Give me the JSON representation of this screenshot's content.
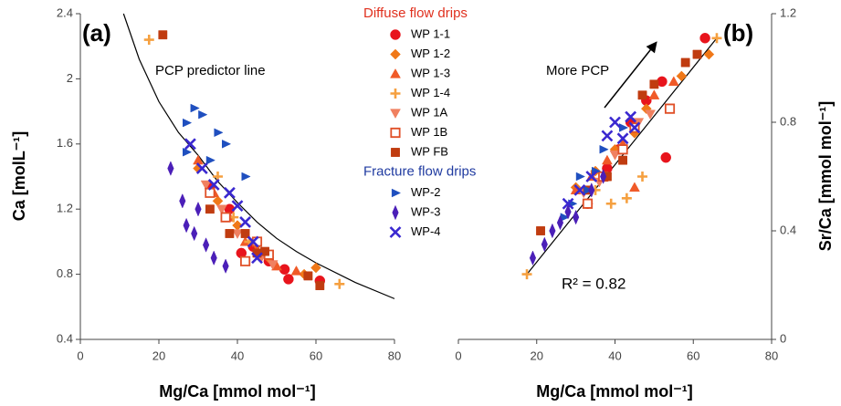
{
  "chart_data": [
    {
      "type": "scatter",
      "panel_label": "(a)",
      "x_label": "Mg/Ca [mmol mol⁻¹]",
      "y_label": "Ca [molL⁻¹]",
      "xlim": [
        0,
        80
      ],
      "xticks": [
        0,
        20,
        40,
        60,
        80
      ],
      "ylim": [
        0.4,
        2.4
      ],
      "yticks": [
        0.4,
        0.8,
        1.2,
        1.6,
        2,
        2.4
      ],
      "y_axis_side": "left",
      "annotation": "PCP predictor line",
      "lines": [
        {
          "color": "#000000",
          "x": [
            11,
            15,
            20,
            25,
            30,
            35,
            40,
            45,
            50,
            55,
            60,
            70,
            80
          ],
          "values": [
            2.4,
            2.12,
            1.86,
            1.67,
            1.53,
            1.37,
            1.24,
            1.12,
            1.02,
            0.94,
            0.87,
            0.75,
            0.65
          ]
        }
      ],
      "series_groups": [
        {
          "title": "Diffuse flow drips",
          "color": "#e0301e",
          "series": [
            {
              "name": "WP 1-1",
              "color": "#e8141c",
              "marker": "circle",
              "x": [
                33,
                38,
                41,
                44,
                48,
                52,
                53,
                61
              ],
              "values": [
                1.33,
                1.2,
                0.93,
                0.97,
                0.88,
                0.83,
                0.77,
                0.76
              ]
            },
            {
              "name": "WP 1-2",
              "color": "#f07818",
              "marker": "diamond",
              "x": [
                30,
                35,
                40,
                45,
                48,
                57,
                60
              ],
              "values": [
                1.45,
                1.25,
                1.1,
                0.98,
                0.9,
                0.8,
                0.84
              ]
            },
            {
              "name": "WP 1-3",
              "color": "#f05a28",
              "marker": "triangle",
              "x": [
                30,
                34,
                38,
                42,
                45,
                50,
                55
              ],
              "values": [
                1.5,
                1.3,
                1.15,
                1.0,
                0.95,
                0.85,
                0.82
              ]
            },
            {
              "name": "WP 1-4",
              "color": "#f5a040",
              "marker": "plus",
              "x": [
                17.5,
                35,
                39,
                43,
                47,
                66
              ],
              "values": [
                2.24,
                1.4,
                1.15,
                1.0,
                0.93,
                0.74
              ]
            },
            {
              "name": "WP 1A",
              "color": "#f08060",
              "marker": "triangle-down",
              "x": [
                32,
                36,
                40,
                46,
                49
              ],
              "values": [
                1.35,
                1.2,
                1.05,
                0.9,
                0.86
              ]
            },
            {
              "name": "WP 1B",
              "color": "#e05028",
              "marker": "square-open",
              "x": [
                33,
                37,
                42,
                45,
                48
              ],
              "values": [
                1.3,
                1.15,
                0.88,
                1.0,
                0.92
              ]
            },
            {
              "name": "WP FB",
              "color": "#c03c10",
              "marker": "square",
              "x": [
                21,
                33,
                38,
                42,
                45,
                47,
                58,
                61
              ],
              "values": [
                2.27,
                1.2,
                1.05,
                1.05,
                0.93,
                0.94,
                0.79,
                0.73
              ]
            }
          ]
        },
        {
          "title": "Fracture flow drips",
          "color": "#1f3aa0",
          "series": [
            {
              "name": "WP-2",
              "color": "#1f4fbf",
              "marker": "triangle-right",
              "x": [
                27,
                29,
                31,
                35,
                37,
                42,
                33,
                27
              ],
              "values": [
                1.73,
                1.82,
                1.78,
                1.67,
                1.6,
                1.4,
                1.5,
                1.55
              ]
            },
            {
              "name": "WP-3",
              "color": "#4b1fb8",
              "marker": "thin-diamond",
              "x": [
                23,
                26,
                27,
                29,
                30,
                32,
                34,
                37
              ],
              "values": [
                1.45,
                1.25,
                1.1,
                1.05,
                1.2,
                0.98,
                0.9,
                0.85
              ]
            },
            {
              "name": "WP-4",
              "color": "#3a28d0",
              "marker": "x",
              "x": [
                28,
                31,
                34,
                38,
                40,
                42,
                44,
                45
              ],
              "values": [
                1.6,
                1.45,
                1.35,
                1.3,
                1.22,
                1.12,
                1.0,
                0.9
              ]
            }
          ]
        }
      ]
    },
    {
      "type": "scatter",
      "panel_label": "(b)",
      "x_label": "Mg/Ca [mmol mol⁻¹]",
      "y_label": "Sr/Ca [mmol mol⁻¹]",
      "xlim": [
        0,
        80
      ],
      "xticks": [
        0,
        20,
        40,
        60,
        80
      ],
      "ylim": [
        0,
        1.2
      ],
      "yticks": [
        0,
        0.4,
        0.8,
        1.2
      ],
      "y_axis_side": "right",
      "annotation": "More PCP",
      "r_squared_label": "R² = 0.82",
      "lines": [
        {
          "color": "#000000",
          "x": [
            17.5,
            66
          ],
          "values": [
            0.24,
            1.11
          ]
        }
      ],
      "series": [
        {
          "name": "WP 1-1",
          "color": "#e8141c",
          "marker": "circle",
          "x": [
            33,
            38,
            41,
            44,
            48,
            52,
            53,
            63
          ],
          "values": [
            0.5,
            0.63,
            0.7,
            0.8,
            0.88,
            0.95,
            0.67,
            1.11
          ]
        },
        {
          "name": "WP 1-2",
          "color": "#f07818",
          "marker": "diamond",
          "x": [
            30,
            35,
            40,
            45,
            48,
            57,
            64
          ],
          "values": [
            0.56,
            0.62,
            0.7,
            0.76,
            0.85,
            0.97,
            1.05
          ]
        },
        {
          "name": "WP 1-3",
          "color": "#f05a28",
          "marker": "triangle",
          "x": [
            30,
            34,
            38,
            42,
            45,
            50,
            55
          ],
          "values": [
            0.55,
            0.6,
            0.66,
            0.72,
            0.56,
            0.9,
            0.95
          ]
        },
        {
          "name": "WP 1-4",
          "color": "#f5a040",
          "marker": "plus",
          "x": [
            17.5,
            35,
            39,
            43,
            47,
            66
          ],
          "values": [
            0.24,
            0.55,
            0.5,
            0.52,
            0.6,
            1.11
          ]
        },
        {
          "name": "WP 1A",
          "color": "#f08060",
          "marker": "triangle-down",
          "x": [
            32,
            36,
            40,
            46,
            49
          ],
          "values": [
            0.54,
            0.58,
            0.68,
            0.8,
            0.83
          ]
        },
        {
          "name": "WP 1B",
          "color": "#e05028",
          "marker": "square-open",
          "x": [
            33,
            37,
            42,
            45,
            54
          ],
          "values": [
            0.5,
            0.6,
            0.7,
            0.78,
            0.85
          ]
        },
        {
          "name": "WP FB",
          "color": "#c03c10",
          "marker": "square",
          "x": [
            21,
            33,
            38,
            42,
            47,
            50,
            58,
            61
          ],
          "values": [
            0.4,
            0.55,
            0.6,
            0.66,
            0.9,
            0.94,
            1.02,
            1.05
          ]
        },
        {
          "name": "WP-2",
          "color": "#1f4fbf",
          "marker": "triangle-right",
          "x": [
            27,
            29,
            31,
            35,
            37,
            42,
            33
          ],
          "values": [
            0.45,
            0.5,
            0.6,
            0.62,
            0.7,
            0.78,
            0.55
          ]
        },
        {
          "name": "WP-3",
          "color": "#4b1fb8",
          "marker": "thin-diamond",
          "x": [
            19,
            22,
            24,
            26,
            28,
            30,
            34,
            37
          ],
          "values": [
            0.3,
            0.35,
            0.4,
            0.43,
            0.47,
            0.45,
            0.55,
            0.6
          ]
        },
        {
          "name": "WP-4",
          "color": "#3a28d0",
          "marker": "x",
          "x": [
            28,
            31,
            34,
            38,
            40,
            42,
            44,
            45
          ],
          "values": [
            0.5,
            0.55,
            0.6,
            0.75,
            0.8,
            0.74,
            0.82,
            0.78
          ]
        }
      ]
    }
  ]
}
